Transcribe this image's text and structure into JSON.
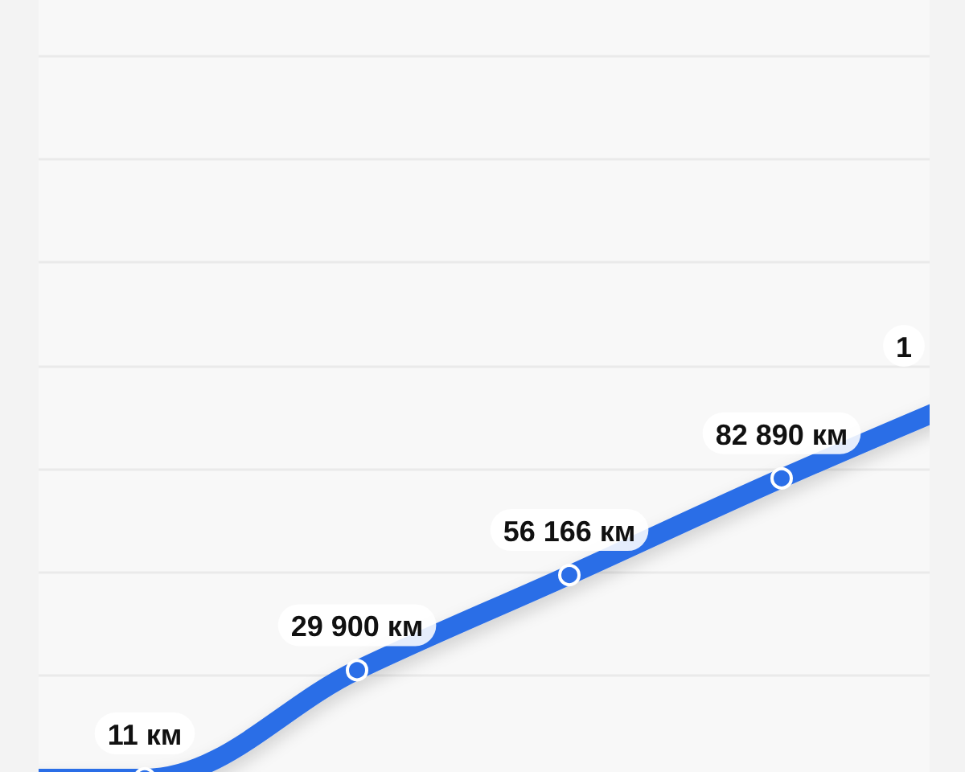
{
  "chart_data": {
    "type": "line",
    "categories": [
      null,
      null,
      null,
      null,
      null,
      null
    ],
    "values": [
      0,
      11,
      29900,
      56166,
      82890,
      108000
    ],
    "color": "#2b6ee7",
    "value_labels": [
      null,
      "11 км",
      "29 900 км",
      "56 166 км",
      "82 890 км",
      null
    ],
    "annotations": [
      "1"
    ],
    "ylim": [
      0,
      215000
    ],
    "yticks": [
      {
        "value": 28500,
        "label": null
      },
      {
        "value": 57000,
        "label": null
      },
      {
        "value": 85500,
        "label": null
      },
      {
        "value": 114000,
        "label": null
      },
      {
        "value": 142500,
        "label": null
      },
      {
        "value": 171000,
        "label": null
      },
      {
        "value": 199500,
        "label": null
      }
    ],
    "grid": "y",
    "tick_labels": false,
    "marker": "circle",
    "line_style": "solid"
  }
}
